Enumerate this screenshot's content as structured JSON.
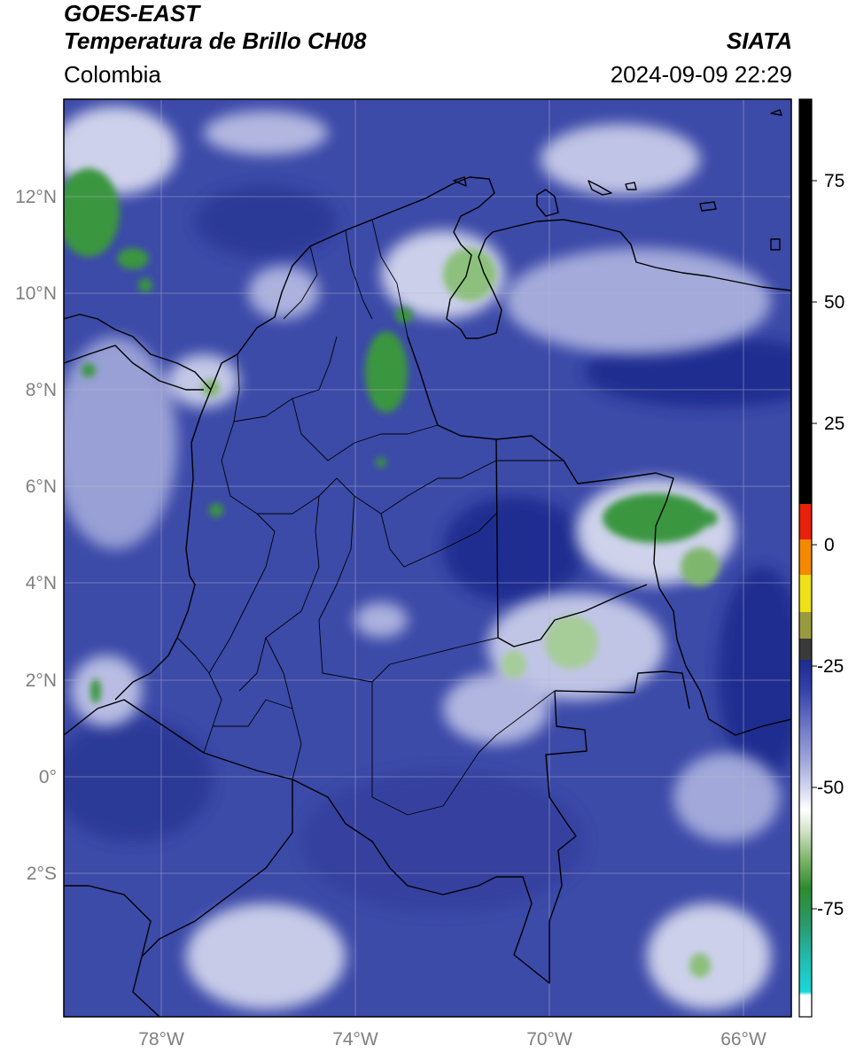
{
  "header": {
    "satellite": "GOES-EAST",
    "product": "Temperatura de Brillo CH08",
    "region": "Colombia",
    "source": "SIATA",
    "datetime": "2024-09-09 22:29"
  },
  "map": {
    "lat_labels": [
      "12°N",
      "10°N",
      "8°N",
      "6°N",
      "4°N",
      "2°N",
      "0°",
      "2°S"
    ],
    "lon_labels": [
      "78°W",
      "74°W",
      "70°W",
      "66°W"
    ],
    "label_color": "#808080",
    "background_color": "#3c4aa8"
  },
  "colorbar": {
    "tick_labels": [
      "75",
      "50",
      "25",
      "0",
      "-25",
      "-50",
      "-75"
    ],
    "colors": {
      "warm": "#000000",
      "red": "#e8200c",
      "orange": "#f58a00",
      "yellow": "#f0e01a",
      "navy": "#1c2a8c",
      "white": "#ffffff",
      "green": "#2e8a2e",
      "cyan": "#18d8d8"
    }
  }
}
